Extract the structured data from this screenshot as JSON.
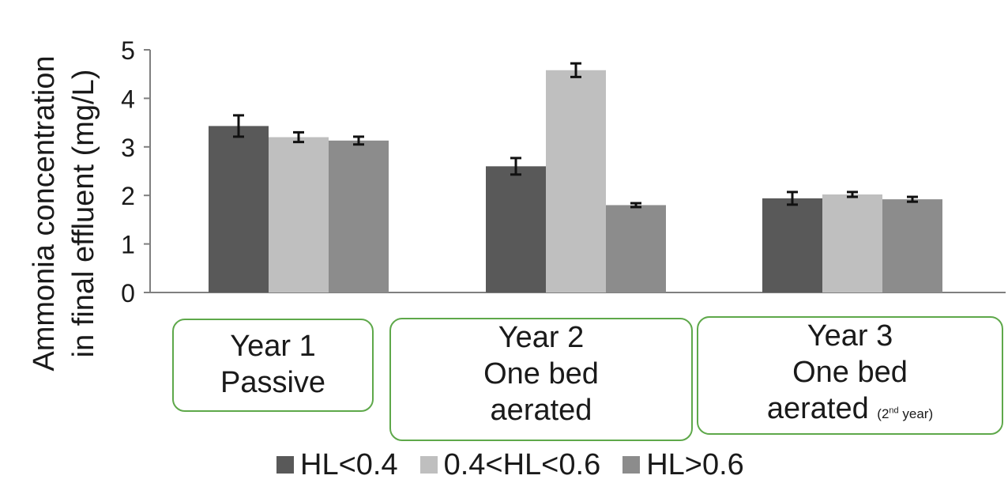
{
  "chart_data": {
    "type": "bar",
    "ylabel_line1": "Ammonia concentration",
    "ylabel_line2": "in final effluent (mg/L)",
    "ylim": [
      0,
      5
    ],
    "yticks": [
      "0",
      "1",
      "2",
      "3",
      "4",
      "5"
    ],
    "categories": [
      "Year 1 Passive",
      "Year 2 One bed aerated",
      "Year 3 One bed aerated (2nd year)"
    ],
    "series": [
      {
        "name": "HL<0.4",
        "color": "#595959",
        "values": [
          3.43,
          2.6,
          1.94
        ],
        "errors": [
          0.22,
          0.17,
          0.13
        ]
      },
      {
        "name": "0.4<HL<0.6",
        "color": "#bfbfbf",
        "values": [
          3.2,
          4.58,
          2.02
        ],
        "errors": [
          0.1,
          0.14,
          0.05
        ]
      },
      {
        "name": "HL>0.6",
        "color": "#8c8c8c",
        "values": [
          3.13,
          1.8,
          1.92
        ],
        "errors": [
          0.08,
          0.04,
          0.05
        ]
      }
    ],
    "grid": false,
    "legend": "bottom"
  },
  "category_boxes": [
    {
      "line1": "Year 1",
      "line2": "Passive",
      "line3": ""
    },
    {
      "line1": "Year 2",
      "line2": "One bed",
      "line3": "aerated"
    },
    {
      "line1": "Year 3",
      "line2": "One bed",
      "line3": "aerated",
      "note_prefix": "(2",
      "note_sup": "nd",
      "note_suffix": " year)"
    }
  ]
}
